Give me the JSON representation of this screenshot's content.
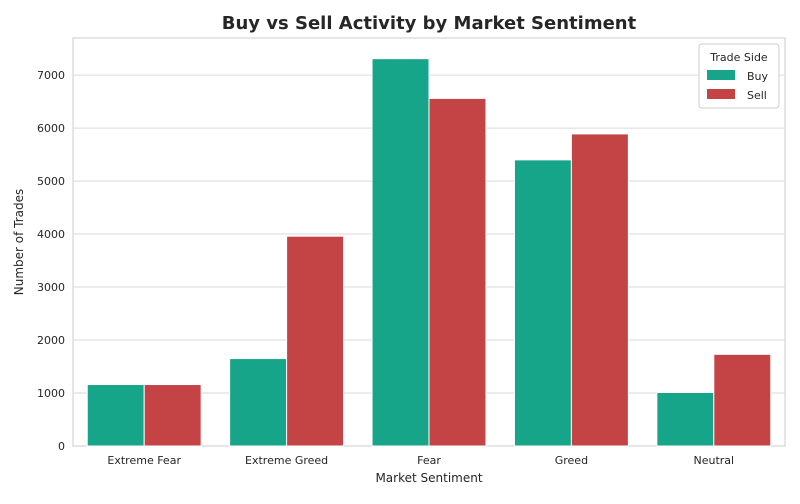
{
  "chart_data": {
    "type": "bar",
    "title": "Buy vs Sell Activity by Market Sentiment",
    "xlabel": "Market Sentiment",
    "ylabel": "Number of Trades",
    "categories": [
      "Extreme Fear",
      "Extreme Greed",
      "Fear",
      "Greed",
      "Neutral"
    ],
    "series": [
      {
        "name": "Buy",
        "color": "#17a589",
        "values": [
          1160,
          1650,
          7310,
          5400,
          1010
        ]
      },
      {
        "name": "Sell",
        "color": "#c44345",
        "values": [
          1160,
          3960,
          6560,
          5890,
          1730
        ]
      }
    ],
    "ylim": [
      0,
      7700
    ],
    "yticks": [
      0,
      1000,
      2000,
      3000,
      4000,
      5000,
      6000,
      7000
    ],
    "ytick_labels": [
      "0",
      "1000",
      "2000",
      "3000",
      "4000",
      "5000",
      "6000",
      "7000"
    ],
    "grid": true,
    "legend": {
      "title": "Trade Side",
      "position": "top-right"
    }
  }
}
